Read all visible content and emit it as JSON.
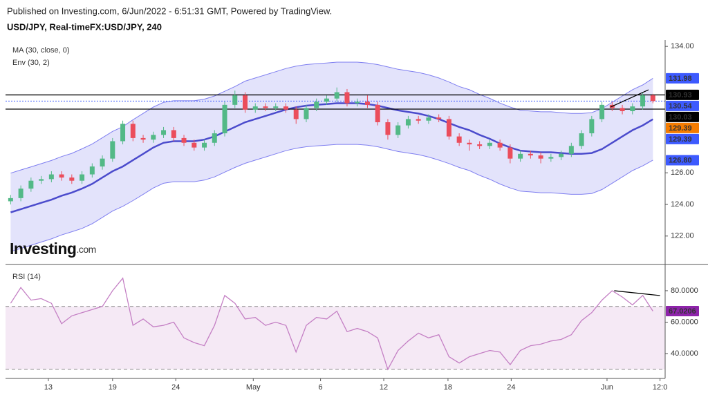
{
  "header": {
    "published": "Published on Investing.com, 6/Jun/2022 - 6:51:31 GMT, Powered by TradingView.",
    "symbol": "USD/JPY, Real-timeFX:USD/JPY, 240",
    "logo": "Investing",
    "logo_suffix": ".com"
  },
  "chart_data": [
    {
      "type": "candlestick",
      "up_color": "#53b987",
      "down_color": "#eb4d5c",
      "open": [
        124.2,
        124.4,
        125.0,
        125.5,
        125.6,
        125.9,
        125.7,
        125.5,
        125.9,
        126.4,
        126.9,
        128.0,
        129.1,
        128.2,
        128.1,
        128.4,
        128.7,
        128.2,
        127.9,
        127.6,
        127.9,
        128.5,
        130.3,
        130.9,
        130.0,
        130.2,
        130.1,
        130.2,
        130.0,
        129.4,
        130.1,
        130.5,
        130.7,
        131.1,
        130.4,
        130.5,
        130.3,
        129.2,
        128.4,
        129.0,
        129.4,
        129.3,
        129.5,
        129.4,
        128.3,
        127.9,
        127.8,
        127.7,
        127.9,
        127.6,
        126.9,
        127.2,
        127.1,
        126.9,
        127.0,
        127.2,
        127.7,
        128.5,
        129.4,
        130.3,
        130.1,
        129.9,
        130.2,
        130.9
      ],
      "high": [
        124.6,
        125.2,
        125.7,
        125.8,
        126.1,
        126.1,
        125.9,
        126.1,
        126.6,
        127.1,
        128.2,
        129.3,
        129.3,
        128.4,
        128.6,
        128.9,
        128.9,
        128.4,
        128.1,
        128.1,
        128.7,
        130.5,
        131.2,
        131.1,
        130.4,
        130.4,
        130.4,
        130.4,
        130.2,
        130.3,
        130.7,
        130.9,
        131.4,
        131.3,
        130.7,
        130.9,
        130.5,
        129.4,
        129.2,
        129.6,
        129.6,
        129.7,
        129.7,
        129.6,
        128.5,
        128.1,
        128.0,
        128.1,
        128.1,
        127.8,
        127.4,
        127.4,
        127.3,
        127.2,
        127.4,
        127.9,
        128.7,
        129.6,
        130.5,
        130.5,
        130.3,
        130.4,
        131.1,
        131.0
      ],
      "low": [
        124.0,
        124.2,
        124.8,
        125.3,
        125.4,
        125.5,
        125.3,
        125.3,
        125.7,
        126.2,
        126.7,
        127.8,
        128.0,
        127.9,
        127.9,
        128.2,
        128.0,
        127.7,
        127.4,
        127.4,
        127.7,
        128.3,
        130.1,
        129.8,
        129.8,
        129.9,
        129.9,
        129.8,
        129.1,
        129.2,
        129.9,
        130.3,
        130.5,
        130.2,
        130.2,
        130.1,
        129.0,
        128.1,
        128.2,
        128.8,
        129.1,
        129.1,
        129.2,
        128.1,
        127.7,
        127.4,
        127.5,
        127.5,
        127.4,
        126.6,
        126.7,
        126.9,
        126.6,
        126.7,
        126.8,
        127.0,
        127.5,
        128.3,
        129.2,
        129.9,
        129.7,
        129.7,
        130.0,
        130.4
      ],
      "close": [
        124.4,
        125.0,
        125.5,
        125.6,
        125.9,
        125.7,
        125.5,
        125.9,
        126.4,
        126.9,
        128.0,
        129.1,
        128.2,
        128.1,
        128.4,
        128.7,
        128.2,
        127.9,
        127.6,
        127.9,
        128.5,
        130.3,
        130.9,
        130.0,
        130.2,
        130.1,
        130.2,
        130.0,
        129.4,
        130.1,
        130.5,
        130.7,
        131.1,
        130.4,
        130.5,
        130.3,
        129.2,
        128.4,
        129.0,
        129.4,
        129.3,
        129.5,
        129.4,
        128.3,
        127.9,
        127.8,
        127.7,
        127.9,
        127.6,
        126.9,
        127.2,
        127.1,
        126.9,
        127.0,
        127.2,
        127.7,
        128.5,
        129.4,
        130.3,
        130.1,
        129.9,
        130.2,
        130.9,
        130.54
      ],
      "ma": {
        "name": "MA (30, close, 0)",
        "color": "#4b4bcc",
        "values": [
          123.5,
          123.7,
          123.9,
          124.1,
          124.3,
          124.55,
          124.75,
          125.0,
          125.3,
          125.7,
          126.1,
          126.4,
          126.8,
          127.2,
          127.6,
          127.9,
          128.0,
          128.0,
          128.0,
          128.1,
          128.3,
          128.6,
          128.9,
          129.2,
          129.4,
          129.6,
          129.8,
          130.0,
          130.15,
          130.25,
          130.3,
          130.35,
          130.4,
          130.4,
          130.4,
          130.35,
          130.25,
          130.1,
          129.95,
          129.85,
          129.75,
          129.6,
          129.4,
          129.15,
          128.9,
          128.7,
          128.4,
          128.15,
          127.85,
          127.6,
          127.4,
          127.35,
          127.3,
          127.3,
          127.25,
          127.2,
          127.2,
          127.25,
          127.5,
          127.9,
          128.3,
          128.7,
          129.0,
          129.39
        ]
      },
      "env": {
        "name": "Env (30, 2)",
        "color": "#7e7ef0",
        "fill": "#e3e3fb",
        "upper": [
          125.98,
          126.18,
          126.38,
          126.58,
          126.78,
          127.03,
          127.23,
          127.52,
          127.82,
          128.22,
          128.62,
          128.92,
          129.36,
          129.76,
          130.16,
          130.46,
          130.56,
          130.56,
          130.56,
          130.66,
          130.86,
          131.16,
          131.46,
          131.8,
          132.0,
          132.2,
          132.4,
          132.6,
          132.75,
          132.85,
          132.9,
          132.95,
          133.0,
          133.0,
          133.0,
          132.95,
          132.85,
          132.7,
          132.55,
          132.45,
          132.35,
          132.2,
          132.0,
          131.75,
          131.46,
          131.26,
          130.96,
          130.71,
          130.41,
          130.16,
          129.96,
          129.91,
          129.86,
          129.86,
          129.81,
          129.76,
          129.76,
          129.81,
          130.06,
          130.46,
          130.86,
          131.26,
          131.56,
          131.98
        ],
        "lower": [
          121.02,
          121.22,
          121.42,
          121.62,
          121.82,
          122.07,
          122.27,
          122.48,
          122.78,
          123.18,
          123.58,
          123.88,
          124.24,
          124.64,
          125.04,
          125.34,
          125.44,
          125.44,
          125.44,
          125.54,
          125.74,
          126.04,
          126.34,
          126.6,
          126.8,
          127.0,
          127.2,
          127.4,
          127.55,
          127.65,
          127.7,
          127.75,
          127.8,
          127.8,
          127.8,
          127.75,
          127.65,
          127.5,
          127.35,
          127.25,
          127.15,
          127.0,
          126.8,
          126.59,
          126.34,
          126.14,
          125.84,
          125.59,
          125.29,
          125.04,
          124.84,
          124.79,
          124.74,
          124.74,
          124.69,
          124.64,
          124.64,
          124.69,
          124.94,
          125.34,
          125.74,
          126.14,
          126.44,
          126.8
        ]
      },
      "price_tags": [
        {
          "value": 131.98,
          "color": "#3d5afe"
        },
        {
          "value": 130.93,
          "color": "#000000",
          "line": "solid"
        },
        {
          "value": 130.54,
          "color": "#3d5afe",
          "line": "dotted"
        },
        {
          "value": 130.03,
          "color": "#000000",
          "line": "solid"
        },
        {
          "value": 129.39,
          "color": "#f57c00"
        },
        {
          "value": 129.39,
          "color": "#3d5afe"
        },
        {
          "value": 126.8,
          "label": "126.80",
          "color": "#3d5afe"
        }
      ],
      "trendline": {
        "x": [
          58.84,
          62.57
        ],
        "y": [
          130.16,
          131.25
        ],
        "color": "#000000"
      },
      "xlim": [
        -0.5,
        64.2
      ],
      "ylim": [
        120.2,
        134.4
      ],
      "yticks": [
        {
          "value": 122,
          "label": "122.00"
        },
        {
          "value": 124,
          "label": "124.00"
        },
        {
          "value": 126,
          "label": "126.00"
        },
        {
          "value": 134,
          "label": "134.00"
        }
      ]
    },
    {
      "type": "line",
      "name": "RSI (14)",
      "color": "#c47fc4",
      "band_fill": "#f5e9f5",
      "values": [
        72,
        82,
        74,
        75,
        72,
        59,
        64,
        66,
        68,
        70,
        80,
        88,
        58,
        62,
        57,
        58,
        60,
        50,
        47,
        45,
        58,
        77,
        72,
        62,
        63,
        58,
        60,
        58,
        41,
        58,
        63,
        62,
        67,
        54,
        56,
        54,
        50,
        30,
        42,
        48,
        53,
        50,
        52,
        38,
        34,
        38,
        40,
        42,
        41,
        33,
        42,
        45,
        46,
        48,
        49,
        52,
        61,
        66,
        74,
        80,
        76,
        71,
        77,
        67.0206
      ],
      "bands": [
        30,
        70
      ],
      "tag": {
        "value": 67.0206,
        "color": "#8e24aa"
      },
      "trendline": {
        "x": [
          59.2,
          63.7
        ],
        "y": [
          80,
          76.9
        ],
        "color": "#000000"
      },
      "xlim": [
        -0.5,
        64.2
      ],
      "ylim": [
        24.2,
        95.8
      ],
      "yticks": [
        {
          "value": 40,
          "label": "40.0000"
        },
        {
          "value": 60,
          "label": "60.0000"
        },
        {
          "value": 80,
          "label": "80.0000"
        }
      ],
      "xticks": [
        {
          "value": 3.7,
          "label": "13"
        },
        {
          "value": 10.0,
          "label": "19"
        },
        {
          "value": 16.2,
          "label": "24"
        },
        {
          "value": 23.8,
          "label": "May"
        },
        {
          "value": 30.4,
          "label": "6"
        },
        {
          "value": 36.6,
          "label": "12"
        },
        {
          "value": 42.9,
          "label": "18"
        },
        {
          "value": 49.1,
          "label": "24"
        },
        {
          "value": 58.5,
          "label": "Jun"
        },
        {
          "value": 63.7,
          "label": "12:0"
        }
      ]
    }
  ]
}
